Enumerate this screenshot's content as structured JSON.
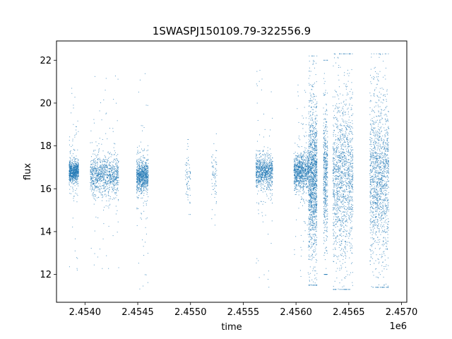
{
  "chart_data": {
    "type": "scatter",
    "title": "1SWASPJ150109.79-322556.9",
    "xlabel": "time",
    "ylabel": "flux",
    "x_offset_label": "1e6",
    "x_scale": 1000000,
    "xlim": [
      2.45373,
      2.45705
    ],
    "ylim": [
      10.7,
      22.9
    ],
    "x_ticks": [
      2.454,
      2.4545,
      2.455,
      2.4555,
      2.456,
      2.4565,
      2.457
    ],
    "x_tick_labels": [
      "2.4540",
      "2.4545",
      "2.4550",
      "2.4555",
      "2.4560",
      "2.4565",
      "2.4570"
    ],
    "y_ticks": [
      12,
      14,
      16,
      18,
      20,
      22
    ],
    "y_tick_labels": [
      "12",
      "14",
      "16",
      "18",
      "20",
      "22"
    ],
    "grid": false,
    "point_color": "#1f77b4",
    "clusters": [
      {
        "x_range": [
          2.45385,
          2.45394
        ],
        "center": 16.8,
        "core_sd": 0.25,
        "outlier_range": [
          11.3,
          21.0
        ],
        "density": 0.55
      },
      {
        "x_range": [
          2.45405,
          2.45432
        ],
        "center": 16.6,
        "core_sd": 0.45,
        "outlier_range": [
          11.8,
          21.9
        ],
        "density": 0.7
      },
      {
        "x_range": [
          2.45449,
          2.4546
        ],
        "center": 16.6,
        "core_sd": 0.35,
        "outlier_range": [
          11.3,
          22.3
        ],
        "density": 0.6
      },
      {
        "x_range": [
          2.45495,
          2.455
        ],
        "center": 16.5,
        "core_sd": 0.6,
        "outlier_range": [
          14.8,
          18.3
        ],
        "density": 0.05
      },
      {
        "x_range": [
          2.4552,
          2.45525
        ],
        "center": 16.5,
        "core_sd": 0.8,
        "outlier_range": [
          14.3,
          19.8
        ],
        "density": 0.05
      },
      {
        "x_range": [
          2.45562,
          2.45578
        ],
        "center": 16.8,
        "core_sd": 0.35,
        "outlier_range": [
          11.3,
          22.2
        ],
        "density": 0.6
      },
      {
        "x_range": [
          2.45598,
          2.45612
        ],
        "center": 16.8,
        "core_sd": 0.4,
        "outlier_range": [
          11.8,
          21.4
        ],
        "density": 0.65
      },
      {
        "x_range": [
          2.45612,
          2.4562
        ],
        "center": 16.5,
        "core_sd": 1.6,
        "outlier_range": [
          11.5,
          22.2
        ],
        "density": 1.0
      },
      {
        "x_range": [
          2.45626,
          2.4563
        ],
        "center": 16.5,
        "core_sd": 1.4,
        "outlier_range": [
          12.0,
          22.0
        ],
        "density": 0.35
      },
      {
        "x_range": [
          2.45635,
          2.45654
        ],
        "center": 16.5,
        "core_sd": 1.8,
        "outlier_range": [
          11.3,
          22.3
        ],
        "density": 1.0
      },
      {
        "x_range": [
          2.4567,
          2.45688
        ],
        "center": 16.5,
        "core_sd": 1.7,
        "outlier_range": [
          11.4,
          22.3
        ],
        "density": 1.0
      }
    ]
  }
}
